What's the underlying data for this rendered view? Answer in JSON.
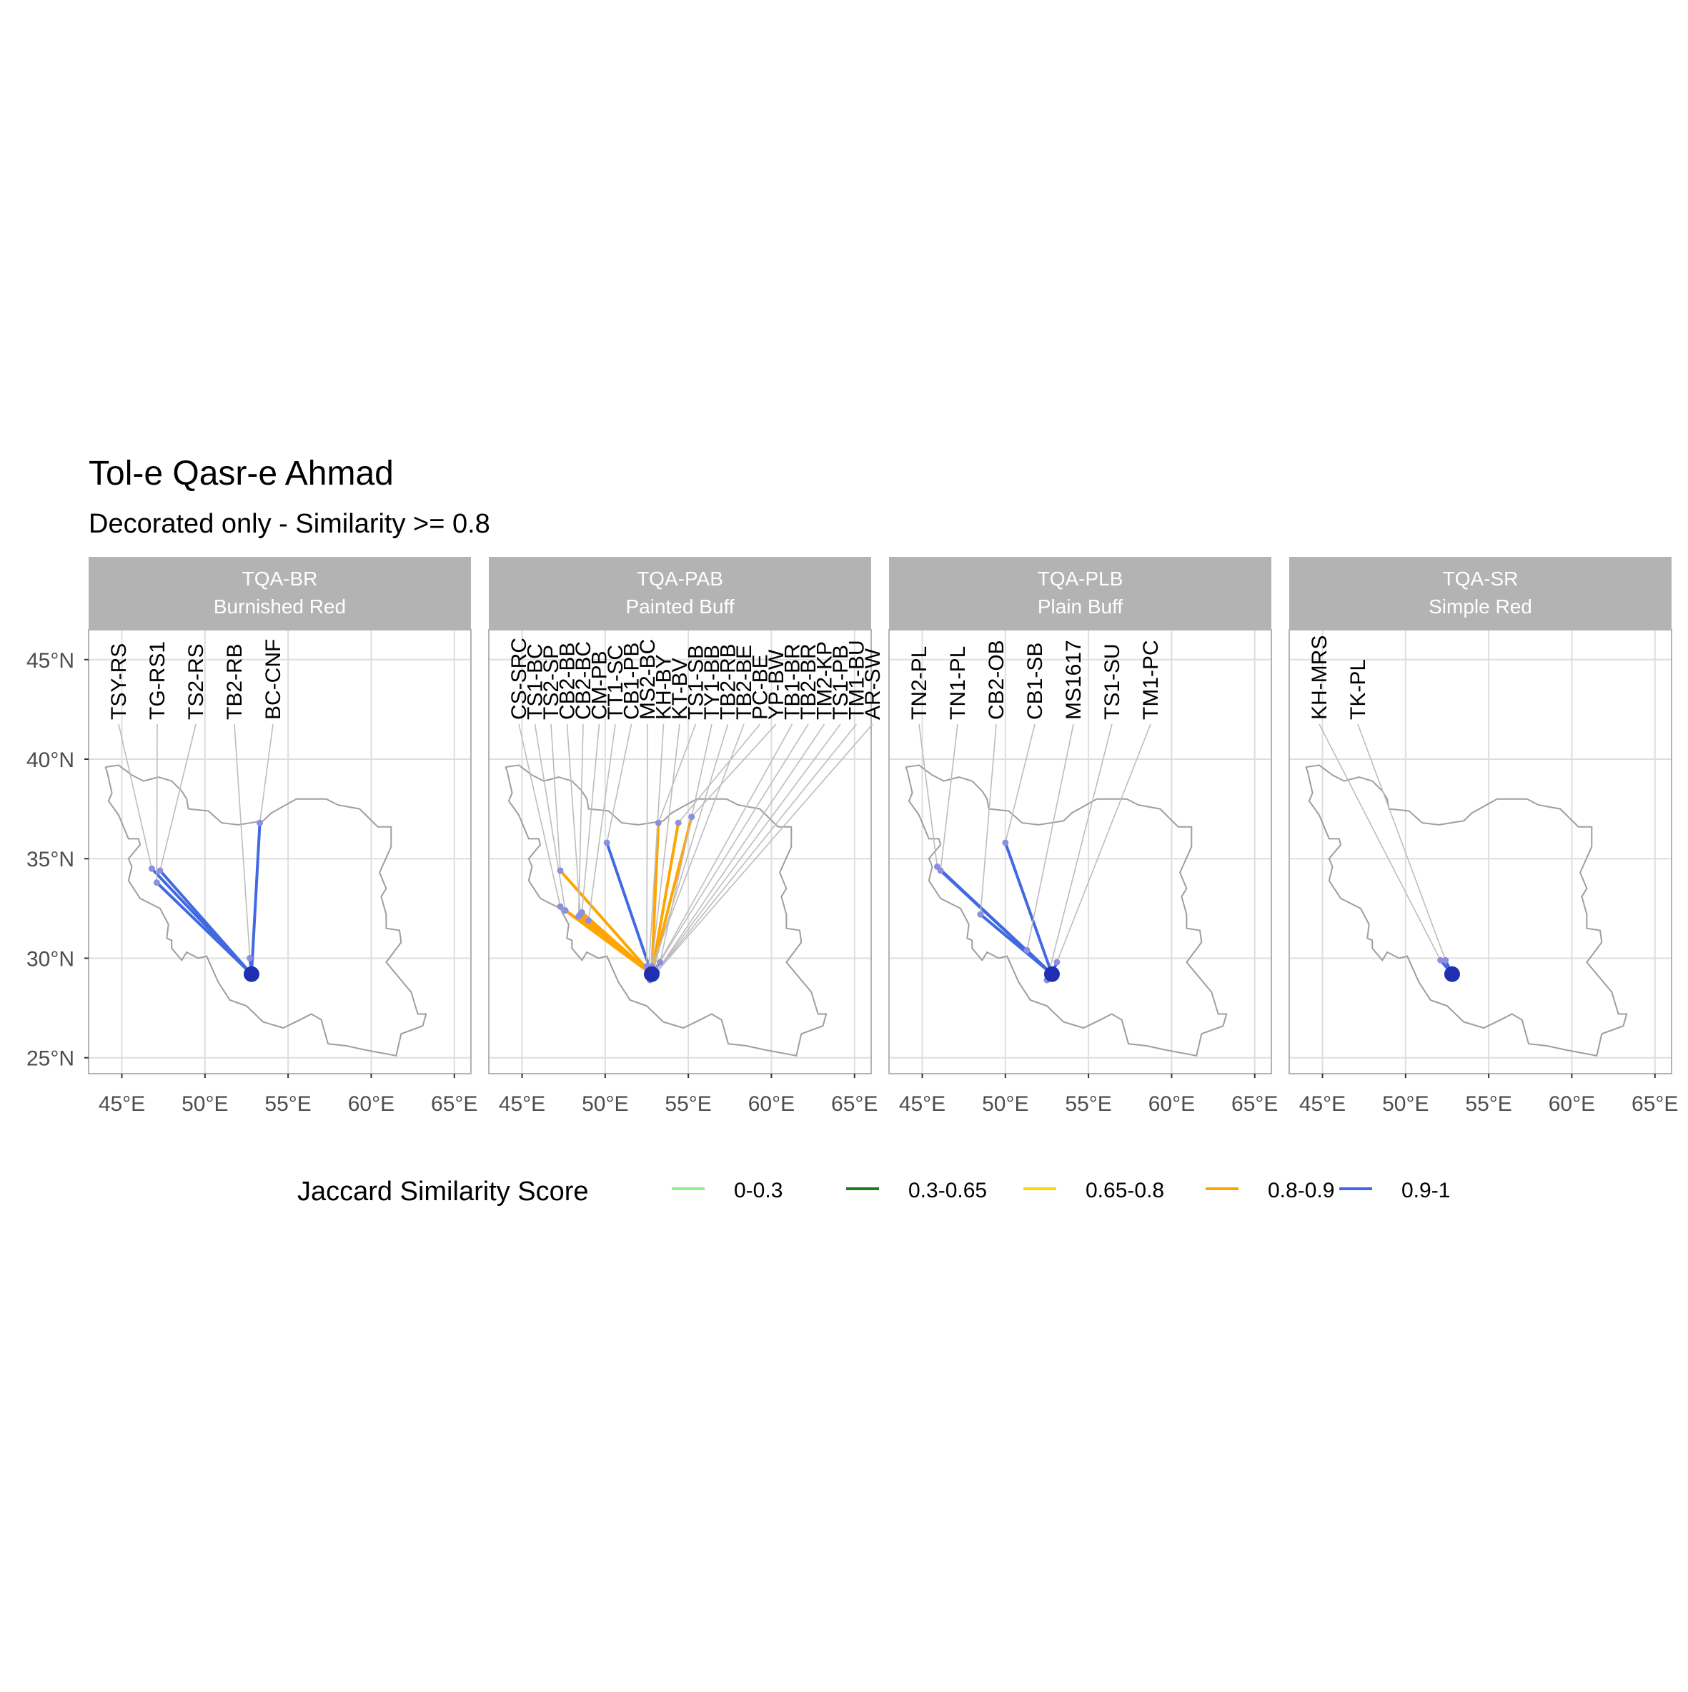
{
  "chart_data": {
    "type": "map",
    "title": "Tol-e Qasr-e Ahmad",
    "subtitle": "Decorated only - Similarity >= 0.8",
    "x_ticks": [
      "45°E",
      "50°E",
      "55°E",
      "60°E",
      "65°E"
    ],
    "y_ticks": [
      "45°N",
      "40°N",
      "35°N",
      "30°N",
      "25°N"
    ],
    "xlim": [
      43,
      66
    ],
    "ylim": [
      24.2,
      46.5
    ],
    "grid": true,
    "legend": {
      "title": "Jaccard Similarity Score",
      "position": "bottom",
      "entries": [
        {
          "label": "0-0.3",
          "color": "#90EE90"
        },
        {
          "label": "0.3-0.65",
          "color": "#1E7D1E"
        },
        {
          "label": "0.65-0.8",
          "color": "#FFD700"
        },
        {
          "label": "0.8-0.9",
          "color": "#FFA500"
        },
        {
          "label": "0.9-1",
          "color": "#4169E1"
        }
      ]
    },
    "origin": {
      "name": "Tol-e Qasr-e Ahmad",
      "lon": 52.8,
      "lat": 29.2
    },
    "panels": [
      {
        "title1": "TQA-BR",
        "title2": "Burnished Red",
        "sites": [
          {
            "label": "TSY-RS",
            "lon": 46.8,
            "lat": 34.5,
            "band": "0.9-1"
          },
          {
            "label": "TG-RS1",
            "lon": 47.1,
            "lat": 33.8,
            "band": "0.9-1"
          },
          {
            "label": "TS2-RS",
            "lon": 47.3,
            "lat": 34.4,
            "band": "0.9-1"
          },
          {
            "label": "TB2-RB",
            "lon": 52.7,
            "lat": 30.0,
            "band": "0.9-1"
          },
          {
            "label": "BC-CNF",
            "lon": 53.3,
            "lat": 36.8,
            "band": "0.9-1"
          }
        ]
      },
      {
        "title1": "TQA-PAB",
        "title2": "Painted Buff",
        "sites": [
          {
            "label": "CS-SRC",
            "lon": 47.3,
            "lat": 32.6,
            "band": "0.8-0.9"
          },
          {
            "label": "TS1-BC",
            "lon": 47.6,
            "lat": 32.4,
            "band": "0.8-0.9"
          },
          {
            "label": "TS2-SP",
            "lon": 47.3,
            "lat": 34.4,
            "band": "0.8-0.9"
          },
          {
            "label": "CB2-BB",
            "lon": 48.5,
            "lat": 32.2,
            "band": "0.8-0.9"
          },
          {
            "label": "CB2-BC",
            "lon": 48.4,
            "lat": 32.1,
            "band": "0.8-0.9"
          },
          {
            "label": "CM-PB",
            "lon": 48.6,
            "lat": 32.3,
            "band": "0.8-0.9"
          },
          {
            "label": "TT1-SC",
            "lon": 49.0,
            "lat": 31.9,
            "band": "0.8-0.9"
          },
          {
            "label": "CB1-PB",
            "lon": 50.1,
            "lat": 35.8,
            "band": "0.9-1"
          },
          {
            "label": "MS2-BC",
            "lon": 52.5,
            "lat": 29.6,
            "band": "0.8-0.9"
          },
          {
            "label": "KH-BY",
            "lon": 52.6,
            "lat": 29.2,
            "band": "0.8-0.9"
          },
          {
            "label": "KT-BV",
            "lon": 52.7,
            "lat": 28.9,
            "band": "0.8-0.9"
          },
          {
            "label": "TS1-SB",
            "lon": 53.2,
            "lat": 36.8,
            "band": "0.8-0.9"
          },
          {
            "label": "TY1-BB",
            "lon": 53.3,
            "lat": 29.8,
            "band": "0.9-1"
          },
          {
            "label": "TB2-RB",
            "lon": 52.9,
            "lat": 29.5,
            "band": "0.8-0.9"
          },
          {
            "label": "TB2-BE",
            "lon": 52.8,
            "lat": 29.6,
            "band": "0.8-0.9"
          },
          {
            "label": "PC-BE",
            "lon": 54.4,
            "lat": 36.8,
            "band": "0.8-0.9"
          },
          {
            "label": "YP-BW",
            "lon": 55.2,
            "lat": 37.1,
            "band": "0.8-0.9"
          },
          {
            "label": "TB1-BR",
            "lon": 53.0,
            "lat": 29.4,
            "band": "0.8-0.9"
          },
          {
            "label": "TB2-BR",
            "lon": 52.9,
            "lat": 29.3,
            "band": "0.8-0.9"
          },
          {
            "label": "TM2-KP",
            "lon": 53.0,
            "lat": 29.2,
            "band": "0.8-0.9"
          },
          {
            "label": "TS1-PB",
            "lon": 52.9,
            "lat": 29.1,
            "band": "0.8-0.9"
          },
          {
            "label": "TM1-BU",
            "lon": 52.8,
            "lat": 29.0,
            "band": "0.8-0.9"
          },
          {
            "label": "AR-SW",
            "lon": 53.1,
            "lat": 29.3,
            "band": "0.8-0.9"
          }
        ]
      },
      {
        "title1": "TQA-PLB",
        "title2": "Plain Buff",
        "sites": [
          {
            "label": "TN2-PL",
            "lon": 45.9,
            "lat": 34.6,
            "band": "0.9-1"
          },
          {
            "label": "TN1-PL",
            "lon": 46.1,
            "lat": 34.4,
            "band": "0.9-1"
          },
          {
            "label": "CB2-OB",
            "lon": 48.5,
            "lat": 32.2,
            "band": "0.9-1"
          },
          {
            "label": "CB1-SB",
            "lon": 50.0,
            "lat": 35.8,
            "band": "0.9-1"
          },
          {
            "label": "MS1617",
            "lon": 51.3,
            "lat": 30.4,
            "band": "0.9-1"
          },
          {
            "label": "TS1-SU",
            "lon": 52.5,
            "lat": 28.9,
            "band": "0.9-1"
          },
          {
            "label": "TM1-PC",
            "lon": 53.1,
            "lat": 29.8,
            "band": "0.9-1"
          }
        ]
      },
      {
        "title1": "TQA-SR",
        "title2": "Simple Red",
        "sites": [
          {
            "label": "KH-MRS",
            "lon": 52.1,
            "lat": 29.9,
            "band": "0.9-1"
          },
          {
            "label": "TK-PL",
            "lon": 52.4,
            "lat": 29.9,
            "band": "0.9-1"
          }
        ]
      }
    ]
  }
}
